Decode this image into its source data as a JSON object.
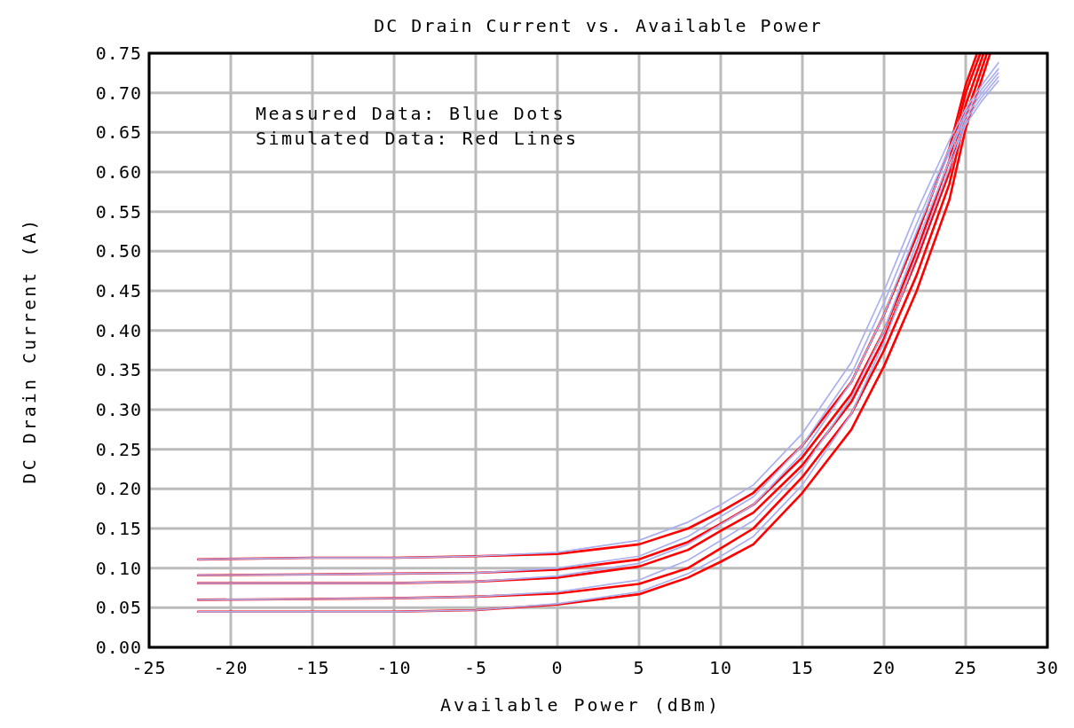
{
  "chart_data": {
    "type": "line",
    "title": "DC Drain Current vs. Available Power",
    "xlabel": "Available Power (dBm)",
    "ylabel": "DC Drain Current (A)",
    "annotations": [
      "Measured Data: Blue Dots",
      "Simulated Data: Red Lines"
    ],
    "xlim": [
      -25,
      30
    ],
    "xticks": [
      -25,
      -20,
      -15,
      -10,
      -5,
      0,
      5,
      10,
      15,
      20,
      25,
      30
    ],
    "ylim": [
      0,
      0.75
    ],
    "yticks": [
      {
        "value": 0,
        "label": "0.00"
      },
      {
        "value": 0.05,
        "label": "0.05"
      },
      {
        "value": 0.1,
        "label": "0.10"
      },
      {
        "value": 0.15,
        "label": "0.15"
      },
      {
        "value": 0.2,
        "label": "0.20"
      },
      {
        "value": 0.25,
        "label": "0.25"
      },
      {
        "value": 0.3,
        "label": "0.30"
      },
      {
        "value": 0.35,
        "label": "0.35"
      },
      {
        "value": 0.4,
        "label": "0.40"
      },
      {
        "value": 0.45,
        "label": "0.45"
      },
      {
        "value": 0.5,
        "label": "0.50"
      },
      {
        "value": 0.55,
        "label": "0.55"
      },
      {
        "value": 0.6,
        "label": "0.60"
      },
      {
        "value": 0.65,
        "label": "0.65"
      },
      {
        "value": 0.7,
        "label": "0.70"
      },
      {
        "value": 0.75,
        "label": "0.75"
      }
    ],
    "grid": true,
    "marker": "none",
    "line_style": "solid",
    "series": [
      {
        "color": "#aab0f0",
        "x": [
          -22,
          -15,
          -10,
          -5,
          0,
          5,
          8,
          10,
          12,
          15,
          18,
          20,
          22,
          24,
          25,
          26,
          27
        ],
        "values": [
          0.111,
          0.113,
          0.113,
          0.115,
          0.12,
          0.135,
          0.158,
          0.18,
          0.205,
          0.27,
          0.36,
          0.45,
          0.55,
          0.64,
          0.68,
          0.71,
          0.738
        ]
      },
      {
        "color": "#aab0f0",
        "x": [
          -22,
          -15,
          -10,
          -5,
          0,
          5,
          8,
          10,
          12,
          15,
          18,
          20,
          22,
          24,
          25,
          26,
          27
        ],
        "values": [
          0.091,
          0.092,
          0.093,
          0.094,
          0.1,
          0.115,
          0.14,
          0.165,
          0.19,
          0.255,
          0.345,
          0.435,
          0.535,
          0.63,
          0.675,
          0.705,
          0.73
        ]
      },
      {
        "color": "#aab0f0",
        "x": [
          -22,
          -15,
          -10,
          -5,
          0,
          5,
          8,
          10,
          12,
          15,
          18,
          20,
          22,
          24,
          25,
          26,
          27
        ],
        "values": [
          0.081,
          0.081,
          0.081,
          0.083,
          0.09,
          0.106,
          0.13,
          0.155,
          0.18,
          0.245,
          0.335,
          0.42,
          0.525,
          0.625,
          0.67,
          0.7,
          0.725
        ]
      },
      {
        "color": "#aab0f0",
        "x": [
          -22,
          -15,
          -10,
          -5,
          0,
          5,
          8,
          10,
          12,
          15,
          18,
          20,
          22,
          24,
          25,
          26,
          27
        ],
        "values": [
          0.06,
          0.061,
          0.062,
          0.064,
          0.07,
          0.085,
          0.11,
          0.135,
          0.16,
          0.225,
          0.315,
          0.4,
          0.51,
          0.615,
          0.665,
          0.695,
          0.72
        ]
      },
      {
        "color": "#aab0f0",
        "x": [
          -22,
          -15,
          -10,
          -5,
          0,
          5,
          8,
          10,
          12,
          15,
          18,
          20,
          22,
          24,
          25,
          26,
          27
        ],
        "values": [
          0.045,
          0.045,
          0.045,
          0.047,
          0.055,
          0.07,
          0.093,
          0.115,
          0.14,
          0.205,
          0.295,
          0.385,
          0.495,
          0.605,
          0.66,
          0.69,
          0.715
        ]
      },
      {
        "color": "#ff0000",
        "x": [
          -22,
          -15,
          -10,
          -5,
          0,
          5,
          8,
          10,
          12,
          15,
          18,
          20,
          22,
          24,
          25,
          25.7
        ],
        "values": [
          0.111,
          0.113,
          0.113,
          0.115,
          0.118,
          0.13,
          0.15,
          0.171,
          0.195,
          0.255,
          0.335,
          0.42,
          0.52,
          0.63,
          0.71,
          0.75
        ]
      },
      {
        "color": "#ff0000",
        "x": [
          -22,
          -15,
          -10,
          -5,
          0,
          5,
          8,
          10,
          12,
          15,
          18,
          20,
          22,
          24,
          25,
          25.9
        ],
        "values": [
          0.091,
          0.092,
          0.093,
          0.094,
          0.098,
          0.111,
          0.133,
          0.156,
          0.18,
          0.24,
          0.32,
          0.4,
          0.5,
          0.615,
          0.7,
          0.75
        ]
      },
      {
        "color": "#ff0000",
        "x": [
          -22,
          -15,
          -10,
          -5,
          0,
          5,
          8,
          10,
          12,
          15,
          18,
          20,
          22,
          24,
          25,
          26.1
        ],
        "values": [
          0.081,
          0.081,
          0.081,
          0.083,
          0.088,
          0.102,
          0.123,
          0.147,
          0.17,
          0.23,
          0.31,
          0.39,
          0.49,
          0.6,
          0.685,
          0.75
        ]
      },
      {
        "color": "#ff0000",
        "x": [
          -22,
          -15,
          -10,
          -5,
          0,
          5,
          8,
          10,
          12,
          15,
          18,
          20,
          22,
          24,
          25,
          26.3
        ],
        "values": [
          0.06,
          0.061,
          0.062,
          0.064,
          0.068,
          0.08,
          0.1,
          0.125,
          0.15,
          0.215,
          0.295,
          0.375,
          0.47,
          0.585,
          0.67,
          0.75
        ]
      },
      {
        "color": "#ff0000",
        "x": [
          -22,
          -15,
          -10,
          -5,
          0,
          5,
          8,
          10,
          12,
          15,
          18,
          20,
          22,
          24,
          25,
          26.5
        ],
        "values": [
          0.045,
          0.045,
          0.045,
          0.047,
          0.054,
          0.067,
          0.088,
          0.108,
          0.13,
          0.195,
          0.275,
          0.355,
          0.45,
          0.565,
          0.655,
          0.75
        ]
      }
    ]
  }
}
